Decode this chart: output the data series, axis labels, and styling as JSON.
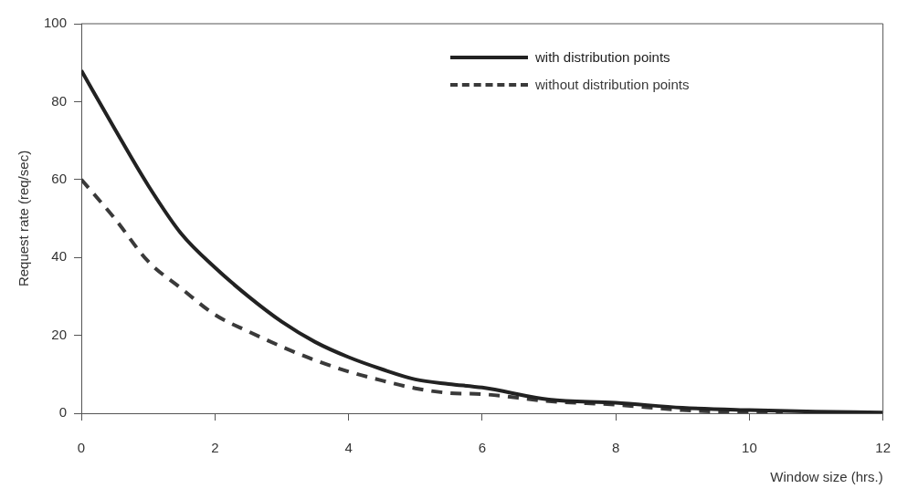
{
  "chart_data": {
    "type": "line",
    "xlabel": "Window size (hrs.)",
    "ylabel": "Request rate (req/sec)",
    "xlim": [
      0,
      12
    ],
    "xticks": [
      0,
      2,
      4,
      6,
      8,
      10,
      12
    ],
    "ylim": [
      0,
      100
    ],
    "yticks": [
      0,
      20,
      40,
      60,
      80,
      100
    ],
    "grid": false,
    "legend": "top right",
    "marker": "none",
    "series": [
      {
        "name": "with distribution points",
        "color": "#222222",
        "line_style": "solid",
        "x": [
          0,
          0.5,
          1,
          1.5,
          2,
          2.5,
          3,
          3.5,
          4,
          4.5,
          5,
          5.5,
          6,
          7,
          8,
          9,
          10,
          11,
          12
        ],
        "values": [
          88,
          73,
          58.5,
          46,
          37.4,
          30,
          23.5,
          18.3,
          14.4,
          11.3,
          8.7,
          7.5,
          6.6,
          3.5,
          2.7,
          1.4,
          0.8,
          0.4,
          0.2
        ]
      },
      {
        "name": "without distribution points",
        "color": "#3a3a3a",
        "line_style": "dashed",
        "x": [
          0,
          0.5,
          1,
          1.5,
          2,
          2.5,
          3,
          3.5,
          4,
          4.5,
          5,
          5.5,
          6,
          7,
          8,
          9,
          10,
          10.5
        ],
        "values": [
          60,
          50,
          39,
          32,
          25.3,
          21,
          17.1,
          13.6,
          10.7,
          8.4,
          6.4,
          5.2,
          4.9,
          3.1,
          2.2,
          0.8,
          0.2,
          0
        ]
      }
    ]
  }
}
